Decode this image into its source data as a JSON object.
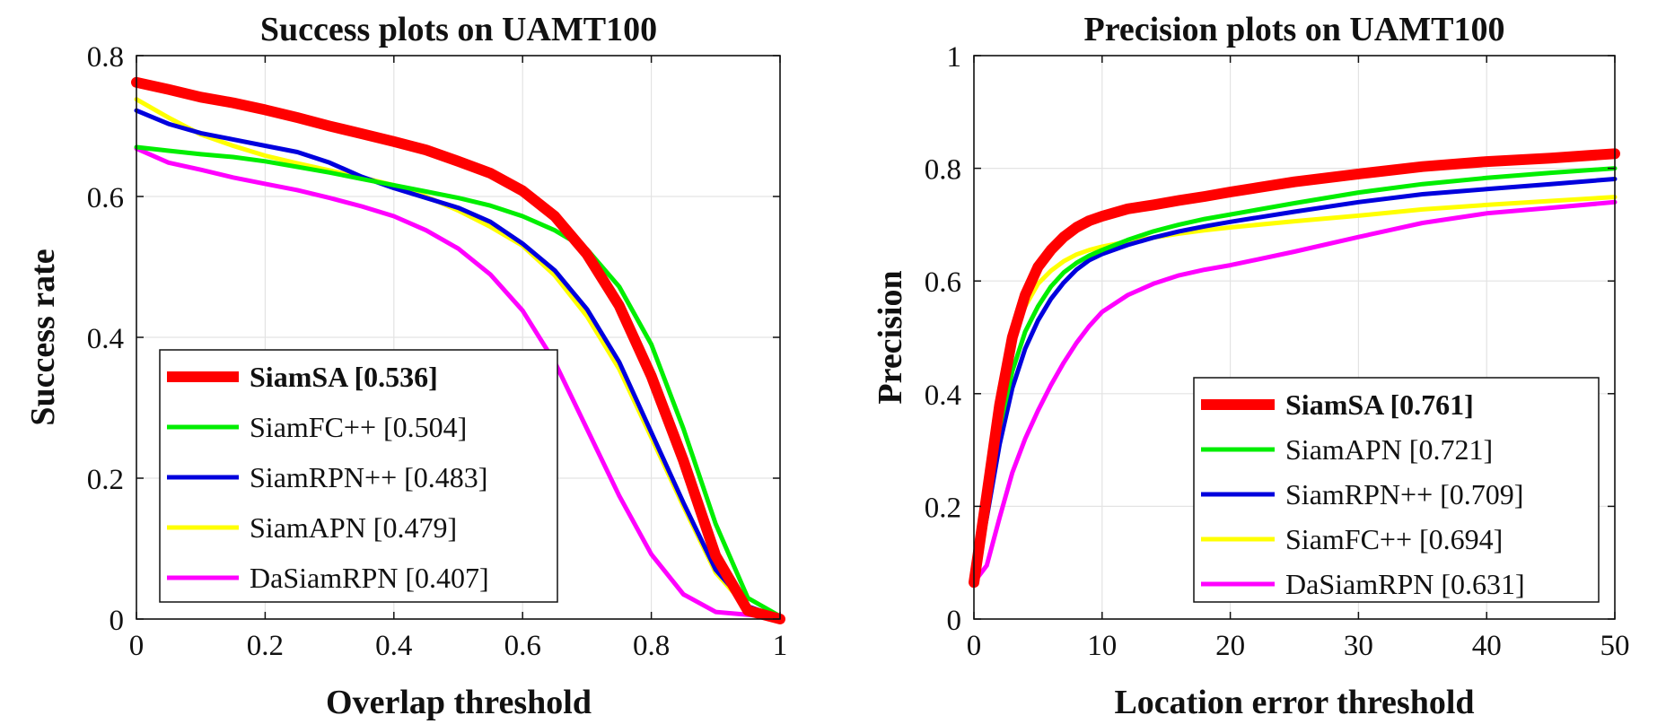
{
  "chart_data": [
    {
      "type": "line",
      "title": "Success plots on UAMT100",
      "xlabel": "Overlap threshold",
      "ylabel": "Success rate",
      "xlim": [
        0,
        1
      ],
      "ylim": [
        0,
        0.8
      ],
      "xticks": [
        0,
        0.2,
        0.4,
        0.6,
        0.8,
        1
      ],
      "xtick_labels": [
        "0",
        "0.2",
        "0.4",
        "0.6",
        "0.8",
        "1"
      ],
      "yticks": [
        0,
        0.2,
        0.4,
        0.6,
        0.8
      ],
      "ytick_labels": [
        "0",
        "0.2",
        "0.4",
        "0.6",
        "0.8"
      ],
      "grid": true,
      "legend_position": "bottom-left",
      "series": [
        {
          "name": "SiamSA [0.536]",
          "color": "#ff0000",
          "width": 12,
          "bold": true,
          "x": [
            0,
            0.05,
            0.1,
            0.15,
            0.2,
            0.25,
            0.3,
            0.35,
            0.4,
            0.45,
            0.5,
            0.55,
            0.6,
            0.65,
            0.7,
            0.75,
            0.8,
            0.85,
            0.9,
            0.95,
            1.0
          ],
          "y": [
            0.762,
            0.752,
            0.741,
            0.733,
            0.723,
            0.712,
            0.7,
            0.689,
            0.678,
            0.666,
            0.65,
            0.633,
            0.608,
            0.572,
            0.518,
            0.445,
            0.345,
            0.225,
            0.09,
            0.012,
            0.0
          ]
        },
        {
          "name": "SiamFC++ [0.504]",
          "color": "#00ee00",
          "width": 5,
          "bold": false,
          "x": [
            0,
            0.05,
            0.1,
            0.15,
            0.2,
            0.25,
            0.3,
            0.35,
            0.4,
            0.45,
            0.5,
            0.55,
            0.6,
            0.65,
            0.7,
            0.75,
            0.8,
            0.85,
            0.9,
            0.95,
            1.0
          ],
          "y": [
            0.67,
            0.665,
            0.66,
            0.656,
            0.65,
            0.642,
            0.634,
            0.625,
            0.616,
            0.607,
            0.598,
            0.587,
            0.572,
            0.552,
            0.525,
            0.472,
            0.39,
            0.27,
            0.135,
            0.03,
            0.004
          ]
        },
        {
          "name": "SiamRPN++ [0.483]",
          "color": "#0000dd",
          "width": 5,
          "bold": false,
          "x": [
            0,
            0.05,
            0.1,
            0.15,
            0.2,
            0.25,
            0.3,
            0.35,
            0.4,
            0.45,
            0.5,
            0.55,
            0.6,
            0.65,
            0.7,
            0.75,
            0.8,
            0.85,
            0.9,
            0.95,
            1.0
          ],
          "y": [
            0.722,
            0.703,
            0.69,
            0.681,
            0.672,
            0.663,
            0.648,
            0.628,
            0.612,
            0.598,
            0.584,
            0.564,
            0.533,
            0.495,
            0.44,
            0.365,
            0.265,
            0.165,
            0.07,
            0.018,
            0.002
          ]
        },
        {
          "name": "SiamAPN [0.479]",
          "color": "#ffff00",
          "width": 5,
          "bold": false,
          "x": [
            0,
            0.05,
            0.1,
            0.15,
            0.2,
            0.25,
            0.3,
            0.35,
            0.4,
            0.45,
            0.5,
            0.55,
            0.6,
            0.65,
            0.7,
            0.75,
            0.8,
            0.85,
            0.9,
            0.95,
            1.0
          ],
          "y": [
            0.738,
            0.712,
            0.688,
            0.672,
            0.658,
            0.647,
            0.637,
            0.627,
            0.616,
            0.6,
            0.58,
            0.557,
            0.53,
            0.488,
            0.43,
            0.355,
            0.258,
            0.16,
            0.066,
            0.015,
            0.002
          ]
        },
        {
          "name": "DaSiamRPN [0.407]",
          "color": "#ff00ff",
          "width": 5,
          "bold": false,
          "x": [
            0,
            0.05,
            0.1,
            0.15,
            0.2,
            0.25,
            0.3,
            0.35,
            0.4,
            0.45,
            0.5,
            0.55,
            0.6,
            0.65,
            0.7,
            0.75,
            0.8,
            0.85,
            0.9,
            0.95,
            1.0
          ],
          "y": [
            0.668,
            0.648,
            0.638,
            0.627,
            0.618,
            0.609,
            0.598,
            0.586,
            0.572,
            0.552,
            0.526,
            0.489,
            0.438,
            0.365,
            0.27,
            0.175,
            0.092,
            0.035,
            0.01,
            0.006,
            0.002
          ]
        }
      ]
    },
    {
      "type": "line",
      "title": "Precision plots on UAMT100",
      "xlabel": "Location error threshold",
      "ylabel": "Precision",
      "xlim": [
        0,
        50
      ],
      "ylim": [
        0,
        1
      ],
      "xticks": [
        0,
        10,
        20,
        30,
        40,
        50
      ],
      "xtick_labels": [
        "0",
        "10",
        "20",
        "30",
        "40",
        "50"
      ],
      "yticks": [
        0,
        0.2,
        0.4,
        0.6,
        0.8,
        1
      ],
      "ytick_labels": [
        "0",
        "0.2",
        "0.4",
        "0.6",
        "0.8",
        "1"
      ],
      "grid": true,
      "legend_position": "bottom-right",
      "series": [
        {
          "name": "SiamSA [0.761]",
          "color": "#ff0000",
          "width": 12,
          "bold": true,
          "x": [
            0,
            1,
            2,
            3,
            4,
            5,
            6,
            7,
            8,
            9,
            10,
            12,
            14,
            16,
            18,
            20,
            25,
            30,
            35,
            40,
            45,
            50
          ],
          "y": [
            0.065,
            0.22,
            0.38,
            0.5,
            0.575,
            0.625,
            0.655,
            0.678,
            0.695,
            0.707,
            0.715,
            0.728,
            0.735,
            0.743,
            0.75,
            0.758,
            0.776,
            0.79,
            0.803,
            0.812,
            0.818,
            0.826
          ]
        },
        {
          "name": "SiamAPN [0.721]",
          "color": "#00ee00",
          "width": 5,
          "bold": false,
          "x": [
            0,
            1,
            2,
            3,
            4,
            5,
            6,
            7,
            8,
            9,
            10,
            12,
            14,
            16,
            18,
            20,
            25,
            30,
            35,
            40,
            45,
            50
          ],
          "y": [
            0.065,
            0.2,
            0.34,
            0.44,
            0.51,
            0.555,
            0.59,
            0.615,
            0.632,
            0.645,
            0.655,
            0.673,
            0.688,
            0.7,
            0.71,
            0.718,
            0.738,
            0.757,
            0.772,
            0.783,
            0.792,
            0.8
          ]
        },
        {
          "name": "SiamRPN++ [0.709]",
          "color": "#0000dd",
          "width": 5,
          "bold": false,
          "x": [
            0,
            1,
            2,
            3,
            4,
            5,
            6,
            7,
            8,
            9,
            10,
            12,
            14,
            16,
            18,
            20,
            25,
            30,
            35,
            40,
            45,
            50
          ],
          "y": [
            0.065,
            0.18,
            0.31,
            0.41,
            0.48,
            0.53,
            0.568,
            0.597,
            0.62,
            0.637,
            0.648,
            0.664,
            0.677,
            0.688,
            0.697,
            0.705,
            0.723,
            0.74,
            0.754,
            0.763,
            0.772,
            0.781
          ]
        },
        {
          "name": "SiamFC++ [0.694]",
          "color": "#ffff00",
          "width": 5,
          "bold": false,
          "x": [
            0,
            1,
            2,
            3,
            4,
            5,
            6,
            7,
            8,
            9,
            10,
            12,
            14,
            16,
            18,
            20,
            25,
            30,
            35,
            40,
            45,
            50
          ],
          "y": [
            0.07,
            0.25,
            0.41,
            0.5,
            0.555,
            0.595,
            0.618,
            0.635,
            0.647,
            0.655,
            0.661,
            0.67,
            0.677,
            0.684,
            0.69,
            0.695,
            0.706,
            0.716,
            0.727,
            0.735,
            0.742,
            0.749
          ]
        },
        {
          "name": "DaSiamRPN [0.631]",
          "color": "#ff00ff",
          "width": 5,
          "bold": false,
          "x": [
            0,
            1,
            2,
            3,
            4,
            5,
            6,
            7,
            8,
            9,
            10,
            12,
            14,
            16,
            18,
            20,
            25,
            30,
            35,
            40,
            45,
            50
          ],
          "y": [
            0.065,
            0.095,
            0.18,
            0.26,
            0.32,
            0.37,
            0.415,
            0.455,
            0.49,
            0.52,
            0.545,
            0.575,
            0.595,
            0.61,
            0.62,
            0.628,
            0.652,
            0.678,
            0.703,
            0.72,
            0.73,
            0.74
          ]
        }
      ]
    }
  ]
}
